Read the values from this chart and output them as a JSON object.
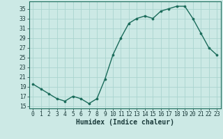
{
  "x": [
    0,
    1,
    2,
    3,
    4,
    5,
    6,
    7,
    8,
    9,
    10,
    11,
    12,
    13,
    14,
    15,
    16,
    17,
    18,
    19,
    20,
    21,
    22,
    23
  ],
  "y": [
    19.5,
    18.5,
    17.5,
    16.5,
    16.0,
    17.0,
    16.5,
    15.5,
    16.5,
    20.5,
    25.5,
    29.0,
    32.0,
    33.0,
    33.5,
    33.0,
    34.5,
    35.0,
    35.5,
    35.5,
    33.0,
    30.0,
    27.0,
    25.5
  ],
  "line_color": "#1a6b5a",
  "marker_color": "#1a6b5a",
  "bg_color": "#cce9e5",
  "grid_color": "#aad4cf",
  "xlabel": "Humidex (Indice chaleur)",
  "xlim": [
    -0.5,
    23.5
  ],
  "ylim": [
    14.5,
    36.5
  ],
  "yticks": [
    15,
    17,
    19,
    21,
    23,
    25,
    27,
    29,
    31,
    33,
    35
  ],
  "xticks": [
    0,
    1,
    2,
    3,
    4,
    5,
    6,
    7,
    8,
    9,
    10,
    11,
    12,
    13,
    14,
    15,
    16,
    17,
    18,
    19,
    20,
    21,
    22,
    23
  ],
  "tick_fontsize": 5.8,
  "label_fontsize": 7.0,
  "spine_color": "#1a6b5a",
  "tick_color": "#1a3a3a"
}
